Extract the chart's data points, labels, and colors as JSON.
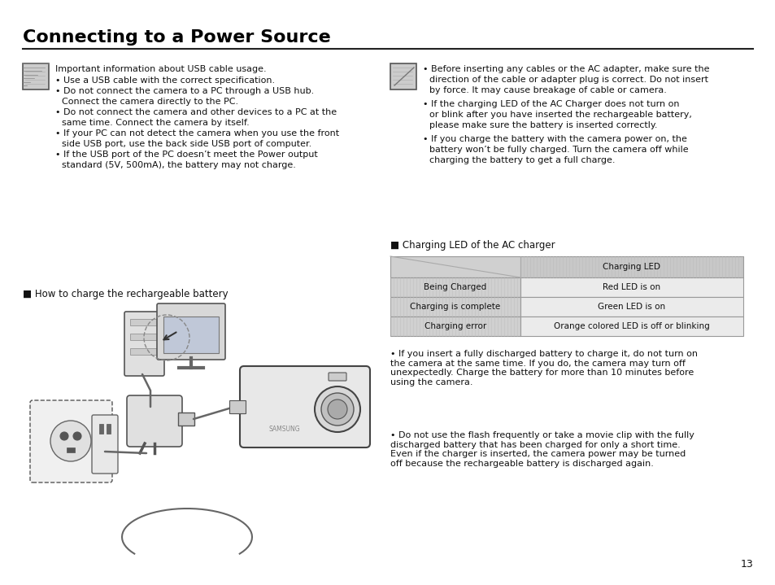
{
  "title": "Connecting to a Power Source",
  "bg_color": "#ffffff",
  "title_color": "#000000",
  "page_number": "13",
  "left_note_title": "Important information about USB cable usage.",
  "left_bullets": [
    "Use a USB cable with the correct specification.",
    "Do not connect the camera to a PC through a USB hub.\n    Connect the camera directly to the PC.",
    "Do not connect the camera and other devices to a PC at the\n    same time. Connect the camera by itself.",
    "If your PC can not detect the camera when you use the front\n    side USB port, use the back side USB port of computer.",
    "If the USB port of the PC doesn’t meet the Power output\n    standard (5V, 500mA), the battery may not charge."
  ],
  "right_bullets": [
    "Before inserting any cables or the AC adapter, make sure the\n    direction of the cable or adapter plug is correct. Do not insert\n    by force. It may cause breakage of cable or camera.",
    "If the charging LED of the AC Charger does not turn on\n    or blink after you have inserted the rechargeable battery,\n    please make sure the battery is inserted correctly.",
    "If you charge the battery with the camera power on, the\n    battery won’t be fully charged. Turn the camera off while\n    charging the battery to get a full charge."
  ],
  "how_to_charge_label": "■ How to charge the rechargeable battery",
  "charging_table_label": "■ Charging LED of the AC charger",
  "table_header_right": "Charging LED",
  "table_rows": [
    [
      "Being Charged",
      "Red LED is on"
    ],
    [
      "Charging is complete",
      "Green LED is on"
    ],
    [
      "Charging error",
      "Orange colored LED is off or blinking"
    ]
  ],
  "table_header_bg": "#c8c8c8",
  "table_left_bg": "#d0d0d0",
  "table_right_bg": "#ebebeb",
  "table_border_color": "#999999",
  "bottom_right_para1": "If you insert a fully discharged battery to charge it, do not turn on\nthe camera at the same time. If you do, the camera may turn off\nunexpectedly. Charge the battery for more than 10 minutes before\nusing the camera.",
  "bottom_right_para2": "Do not use the flash frequently or take a movie clip with the fully\ndischarged battery that has been charged for only a short time.\nEven if the charger is inserted, the camera power may be turned\noff because the rechargeable battery is discharged again."
}
